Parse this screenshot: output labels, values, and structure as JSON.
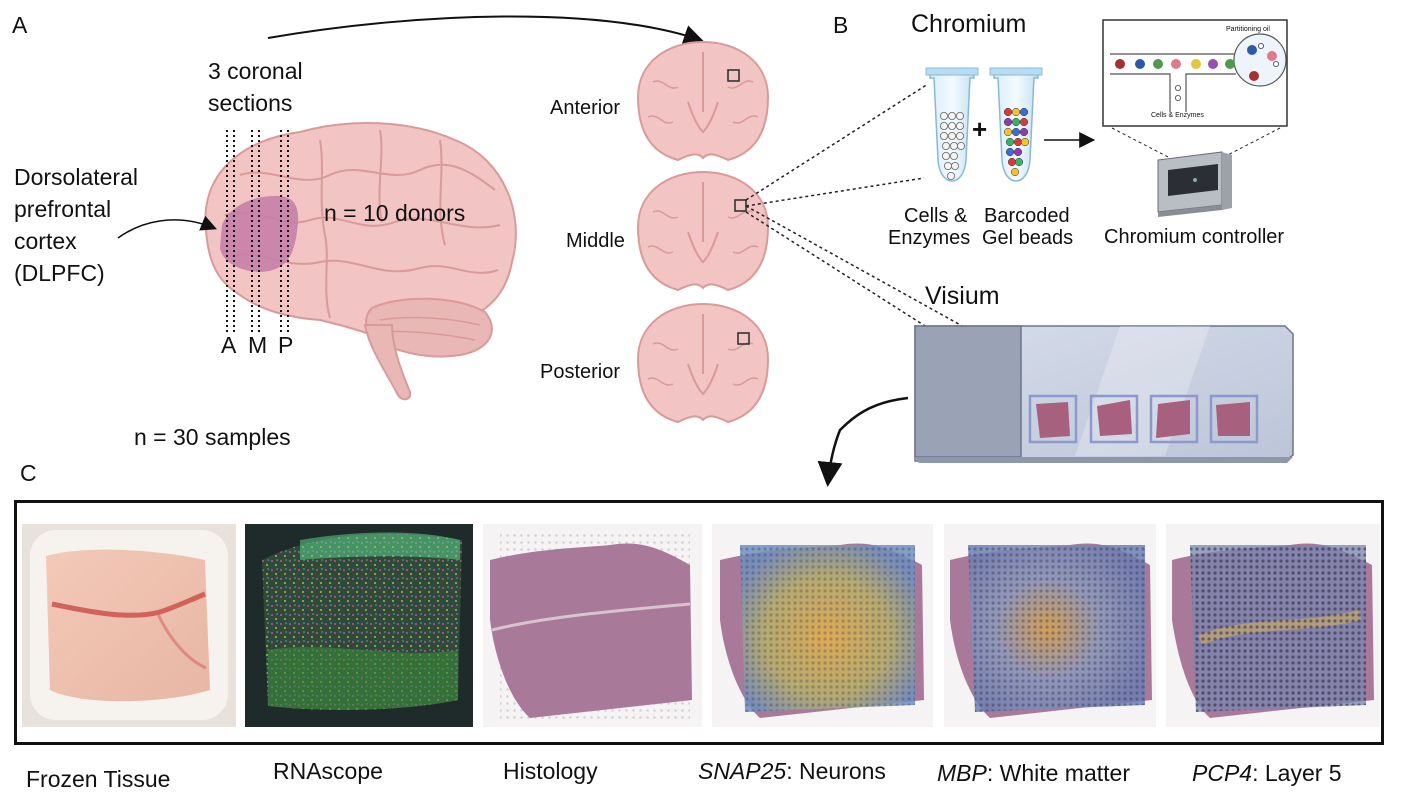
{
  "panel_labels": {
    "a": "A",
    "b": "B",
    "c": "C"
  },
  "panel_a": {
    "sections_label_line1": "3 coronal",
    "sections_label_line2": "sections",
    "region_line1": "Dorsolateral",
    "region_line2": "prefrontal",
    "region_line3": "cortex",
    "region_line4": "(DLPFC)",
    "donors": "n = 10 donors",
    "cut_a": "A",
    "cut_m": "M",
    "cut_p": "P",
    "samples": "n = 30 samples",
    "slice_anterior": "Anterior",
    "slice_middle": "Middle",
    "slice_posterior": "Posterior"
  },
  "panel_b": {
    "chromium_title": "Chromium",
    "cells_line1": "Cells &",
    "cells_line2": "Enzymes",
    "beads_line1": "Barcoded",
    "beads_line2": "Gel beads",
    "plus": "+",
    "controller": "Chromium controller",
    "partitioning_oil": "Partitioning oil",
    "cells_enzymes_small": "Cells & Enzymes",
    "visium_title": "Visium"
  },
  "panel_c": {
    "captions": [
      {
        "italic": "",
        "rest": "Frozen Tissue"
      },
      {
        "italic": "",
        "rest": "RNAscope"
      },
      {
        "italic": "",
        "rest": "Histology"
      },
      {
        "italic": "SNAP25",
        "rest": ": Neurons"
      },
      {
        "italic": "MBP",
        "rest": ": White matter"
      },
      {
        "italic": "PCP4",
        "rest": ": Layer 5"
      }
    ]
  },
  "colors": {
    "brain": "#f2c4c4",
    "brain_stroke": "#d99a9a",
    "dlpfc": "#c77fa8",
    "tissue": "#a8607f",
    "slide": "#c9d0e0",
    "slide_dark": "#8e96ab"
  }
}
